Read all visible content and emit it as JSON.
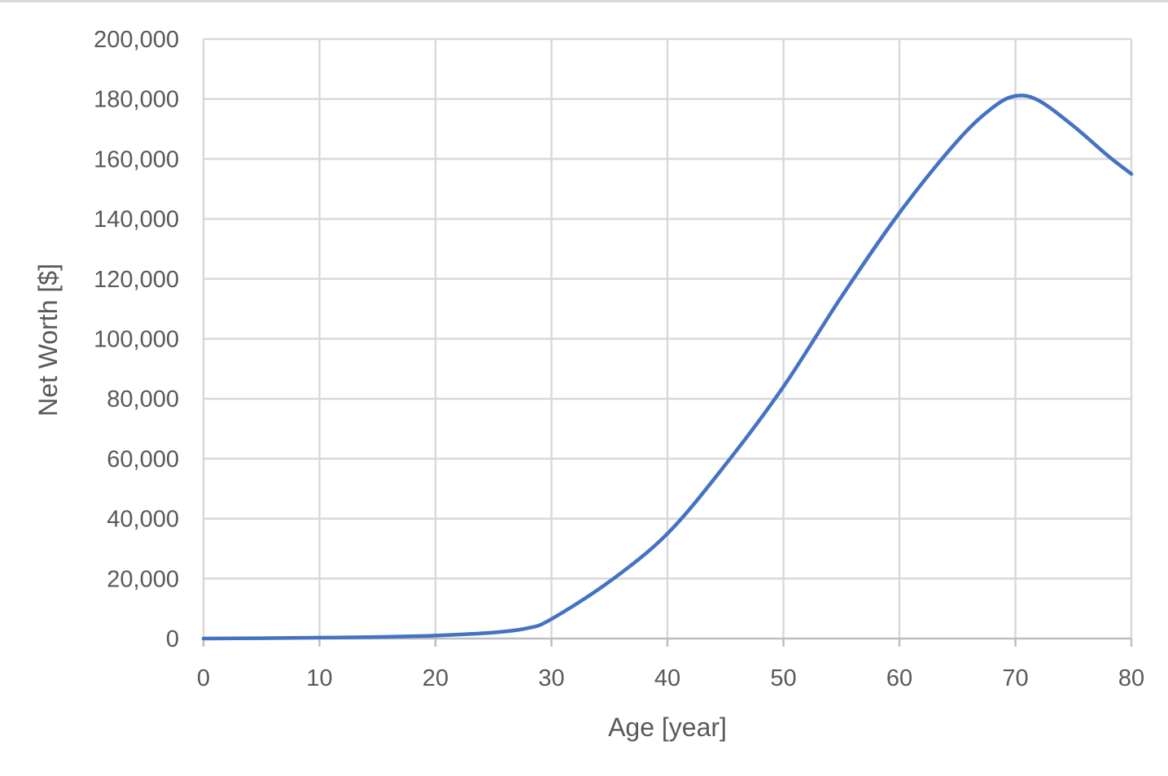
{
  "chart_data": {
    "type": "line",
    "title": "",
    "xlabel": "Age [year]",
    "ylabel": "Net Worth [$]",
    "xlim": [
      0,
      80
    ],
    "ylim": [
      0,
      200000
    ],
    "x_ticks": [
      "0",
      "10",
      "20",
      "30",
      "40",
      "50",
      "60",
      "70",
      "80"
    ],
    "y_ticks": [
      "0",
      "20,000",
      "40,000",
      "60,000",
      "80,000",
      "100,000",
      "120,000",
      "140,000",
      "160,000",
      "180,000",
      "200,000"
    ],
    "grid": true,
    "legend": "none",
    "series": [
      {
        "color": "#4472c4",
        "x": [
          0,
          5,
          10,
          15,
          20,
          25,
          28,
          30,
          35,
          40,
          45,
          50,
          55,
          60,
          65,
          68,
          70,
          72,
          75,
          78,
          80
        ],
        "y": [
          0,
          100,
          300,
          500,
          1000,
          2000,
          3500,
          6500,
          19000,
          35000,
          58000,
          84000,
          114000,
          142000,
          166000,
          177000,
          181000,
          179500,
          171000,
          161000,
          155000
        ]
      }
    ]
  }
}
